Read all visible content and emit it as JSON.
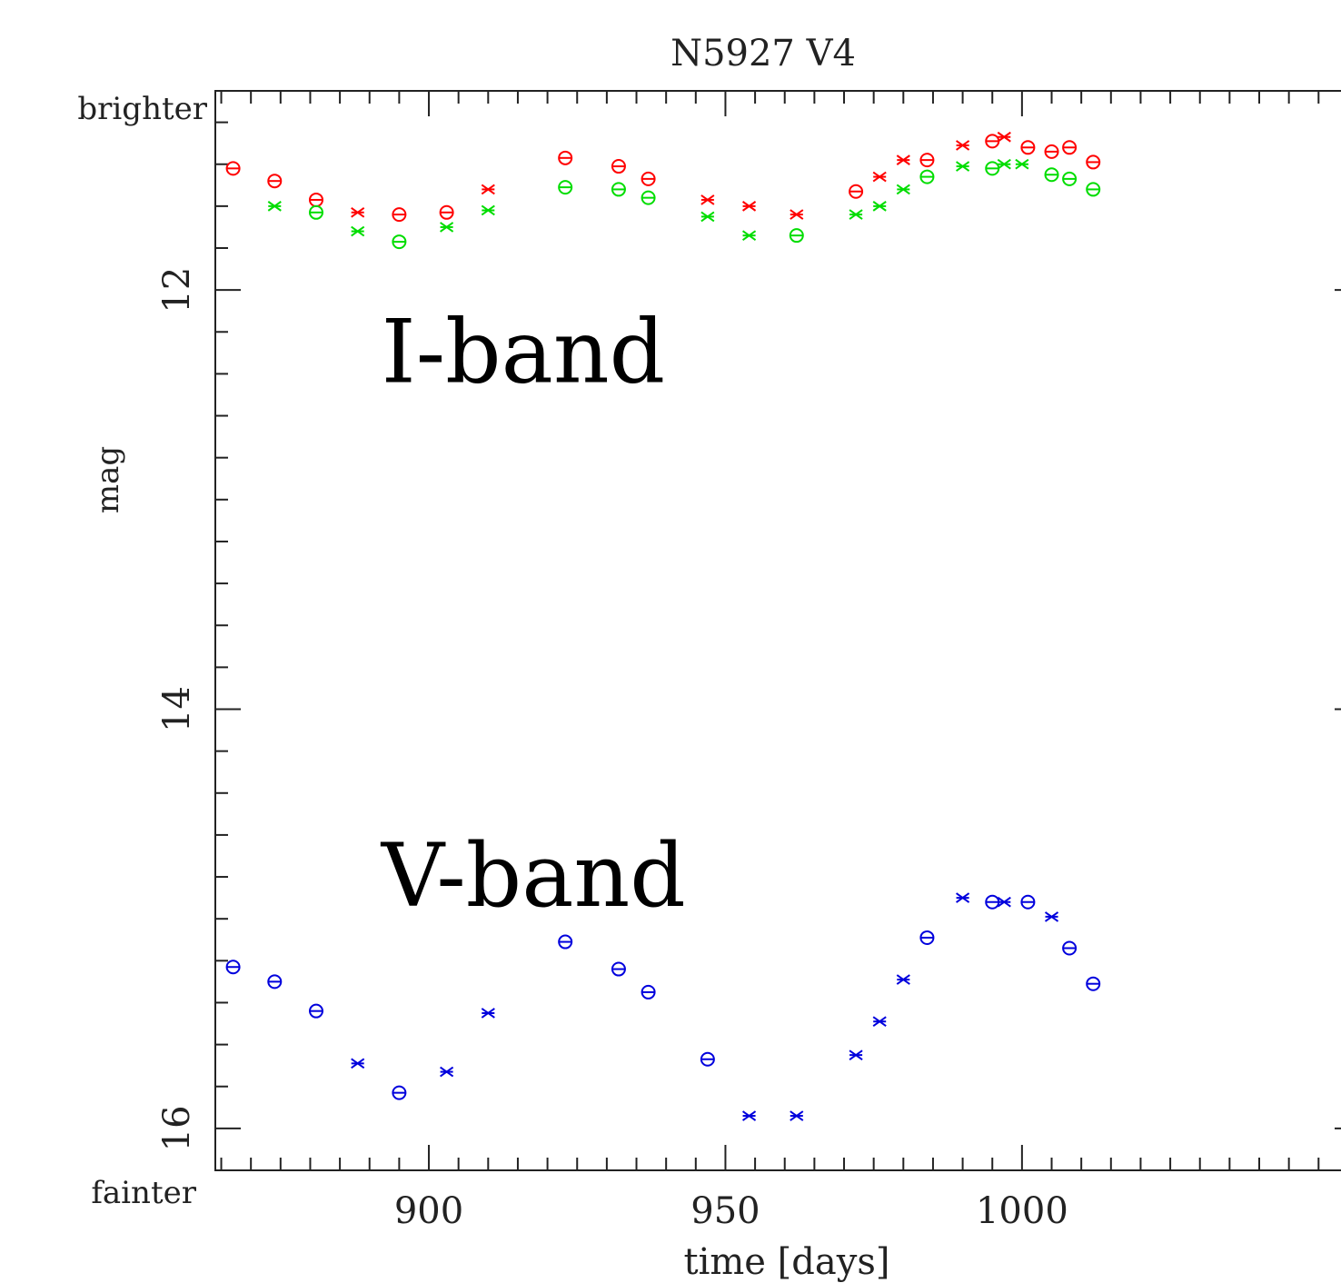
{
  "chart_data": {
    "type": "scatter",
    "title": "N5927 V4",
    "xlabel": "time [days]",
    "ylabel": "mag",
    "y_top_label": "brighter",
    "y_bottom_label": "fainter",
    "y_inverted": true,
    "xlim": [
      864,
      1057
    ],
    "ylim": [
      16.2,
      11.05
    ],
    "x_major_ticks": [
      900,
      950,
      1000
    ],
    "x_tick_labels": [
      "900",
      "950",
      "1000"
    ],
    "y_major_ticks": [
      12,
      14,
      16
    ],
    "y_tick_labels": [
      "12",
      "14",
      "16"
    ],
    "x_minor_step": 5,
    "y_minor_step": 0.2,
    "annotations": [
      {
        "text": "I-band",
        "x": 892,
        "y": 12.3
      },
      {
        "text": "V-band",
        "x": 892,
        "y": 14.8
      }
    ],
    "series": [
      {
        "color": "#ff0000",
        "points": [
          {
            "x": 867,
            "y": 11.42,
            "marker": "circle"
          },
          {
            "x": 874,
            "y": 11.48,
            "marker": "circle"
          },
          {
            "x": 881,
            "y": 11.57,
            "marker": "circle"
          },
          {
            "x": 888,
            "y": 11.63,
            "marker": "cross"
          },
          {
            "x": 895,
            "y": 11.64,
            "marker": "circle"
          },
          {
            "x": 903,
            "y": 11.63,
            "marker": "circle"
          },
          {
            "x": 910,
            "y": 11.52,
            "marker": "cross"
          },
          {
            "x": 923,
            "y": 11.37,
            "marker": "circle"
          },
          {
            "x": 932,
            "y": 11.41,
            "marker": "circle"
          },
          {
            "x": 937,
            "y": 11.47,
            "marker": "circle"
          },
          {
            "x": 947,
            "y": 11.57,
            "marker": "cross"
          },
          {
            "x": 954,
            "y": 11.6,
            "marker": "cross"
          },
          {
            "x": 962,
            "y": 11.64,
            "marker": "cross"
          },
          {
            "x": 972,
            "y": 11.53,
            "marker": "circle"
          },
          {
            "x": 976,
            "y": 11.46,
            "marker": "cross"
          },
          {
            "x": 980,
            "y": 11.38,
            "marker": "cross"
          },
          {
            "x": 984,
            "y": 11.38,
            "marker": "circle"
          },
          {
            "x": 990,
            "y": 11.31,
            "marker": "cross"
          },
          {
            "x": 995,
            "y": 11.29,
            "marker": "circle"
          },
          {
            "x": 997,
            "y": 11.27,
            "marker": "cross"
          },
          {
            "x": 1001,
            "y": 11.32,
            "marker": "circle"
          },
          {
            "x": 1005,
            "y": 11.34,
            "marker": "circle"
          },
          {
            "x": 1008,
            "y": 11.32,
            "marker": "circle"
          },
          {
            "x": 1012,
            "y": 11.39,
            "marker": "circle"
          }
        ]
      },
      {
        "color": "#00dd00",
        "points": [
          {
            "x": 874,
            "y": 11.6,
            "marker": "cross"
          },
          {
            "x": 881,
            "y": 11.63,
            "marker": "circle"
          },
          {
            "x": 888,
            "y": 11.72,
            "marker": "cross"
          },
          {
            "x": 895,
            "y": 11.77,
            "marker": "circle"
          },
          {
            "x": 903,
            "y": 11.7,
            "marker": "cross"
          },
          {
            "x": 910,
            "y": 11.62,
            "marker": "cross"
          },
          {
            "x": 923,
            "y": 11.51,
            "marker": "circle"
          },
          {
            "x": 932,
            "y": 11.52,
            "marker": "circle"
          },
          {
            "x": 937,
            "y": 11.56,
            "marker": "circle"
          },
          {
            "x": 947,
            "y": 11.65,
            "marker": "cross"
          },
          {
            "x": 954,
            "y": 11.74,
            "marker": "cross"
          },
          {
            "x": 962,
            "y": 11.74,
            "marker": "circle"
          },
          {
            "x": 972,
            "y": 11.64,
            "marker": "cross"
          },
          {
            "x": 976,
            "y": 11.6,
            "marker": "cross"
          },
          {
            "x": 980,
            "y": 11.52,
            "marker": "cross"
          },
          {
            "x": 984,
            "y": 11.46,
            "marker": "circle"
          },
          {
            "x": 990,
            "y": 11.41,
            "marker": "cross"
          },
          {
            "x": 995,
            "y": 11.42,
            "marker": "circle"
          },
          {
            "x": 997,
            "y": 11.4,
            "marker": "cross"
          },
          {
            "x": 1000,
            "y": 11.4,
            "marker": "cross"
          },
          {
            "x": 1005,
            "y": 11.45,
            "marker": "circle"
          },
          {
            "x": 1008,
            "y": 11.47,
            "marker": "circle"
          },
          {
            "x": 1012,
            "y": 11.52,
            "marker": "circle"
          }
        ]
      },
      {
        "color": "#0000dd",
        "points": [
          {
            "x": 867,
            "y": 15.23,
            "marker": "circle"
          },
          {
            "x": 874,
            "y": 15.3,
            "marker": "circle"
          },
          {
            "x": 881,
            "y": 15.44,
            "marker": "circle"
          },
          {
            "x": 888,
            "y": 15.69,
            "marker": "cross"
          },
          {
            "x": 895,
            "y": 15.83,
            "marker": "circle"
          },
          {
            "x": 903,
            "y": 15.73,
            "marker": "cross"
          },
          {
            "x": 910,
            "y": 15.45,
            "marker": "cross"
          },
          {
            "x": 923,
            "y": 15.11,
            "marker": "circle"
          },
          {
            "x": 932,
            "y": 15.24,
            "marker": "circle"
          },
          {
            "x": 937,
            "y": 15.35,
            "marker": "circle"
          },
          {
            "x": 947,
            "y": 15.67,
            "marker": "circle"
          },
          {
            "x": 954,
            "y": 15.94,
            "marker": "cross"
          },
          {
            "x": 962,
            "y": 15.94,
            "marker": "cross"
          },
          {
            "x": 972,
            "y": 15.65,
            "marker": "cross"
          },
          {
            "x": 976,
            "y": 15.49,
            "marker": "cross"
          },
          {
            "x": 980,
            "y": 15.29,
            "marker": "cross"
          },
          {
            "x": 984,
            "y": 15.09,
            "marker": "circle"
          },
          {
            "x": 990,
            "y": 14.9,
            "marker": "cross"
          },
          {
            "x": 995,
            "y": 14.92,
            "marker": "circle"
          },
          {
            "x": 997,
            "y": 14.92,
            "marker": "cross"
          },
          {
            "x": 1001,
            "y": 14.92,
            "marker": "circle"
          },
          {
            "x": 1005,
            "y": 14.99,
            "marker": "cross"
          },
          {
            "x": 1008,
            "y": 15.14,
            "marker": "circle"
          },
          {
            "x": 1012,
            "y": 15.31,
            "marker": "circle"
          }
        ]
      }
    ]
  }
}
